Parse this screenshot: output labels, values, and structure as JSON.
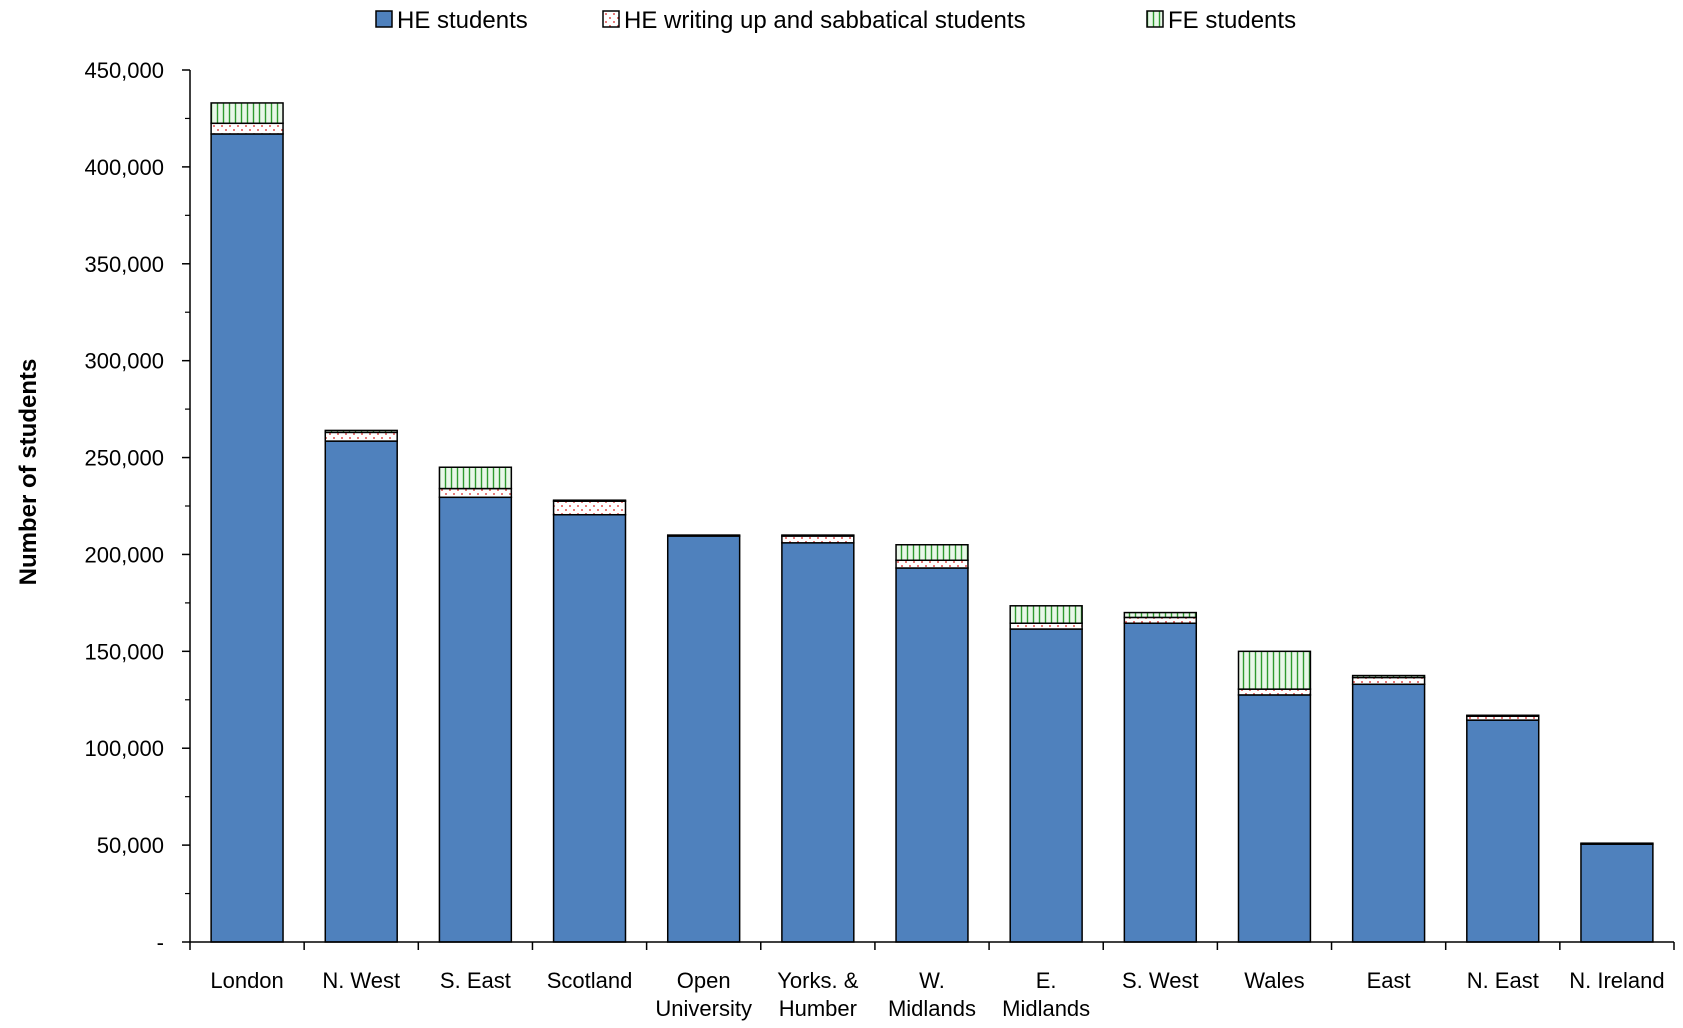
{
  "chart_data": {
    "type": "bar",
    "stacked": true,
    "title": "",
    "xlabel": "",
    "ylabel": "Number of students",
    "ylim": [
      0,
      450000
    ],
    "yticks": [
      0,
      50000,
      100000,
      150000,
      200000,
      250000,
      300000,
      350000,
      400000,
      450000
    ],
    "ytick_labels": [
      "-",
      "50,000",
      "100,000",
      "150,000",
      "200,000",
      "250,000",
      "300,000",
      "350,000",
      "400,000",
      "450,000"
    ],
    "grid": false,
    "legend_position": "top",
    "categories": [
      [
        "London"
      ],
      [
        "N. West"
      ],
      [
        "S. East"
      ],
      [
        "Scotland"
      ],
      [
        "Open",
        "University"
      ],
      [
        "Yorks. &",
        "Humber"
      ],
      [
        "W.",
        "Midlands"
      ],
      [
        "E.",
        "Midlands"
      ],
      [
        "S. West"
      ],
      [
        "Wales"
      ],
      [
        "East"
      ],
      [
        "N. East"
      ],
      [
        "N. Ireland"
      ]
    ],
    "series": [
      {
        "name": "HE students",
        "color": "#4f81bd",
        "pattern": "solid",
        "values": [
          417000,
          258500,
          229500,
          220500,
          209500,
          206000,
          193000,
          161500,
          164500,
          127500,
          133000,
          114500,
          50500
        ]
      },
      {
        "name": "HE writing up and sabbatical students",
        "color": "#ffffff",
        "pattern": "dots",
        "values": [
          5500,
          4500,
          4500,
          7000,
          500,
          3500,
          4000,
          3000,
          3000,
          3000,
          3500,
          2000,
          500
        ]
      },
      {
        "name": "FE students",
        "color": "#e6f5e6",
        "pattern": "vertical-lines",
        "values": [
          10500,
          1000,
          11000,
          500,
          0,
          500,
          8000,
          9000,
          2500,
          19500,
          1000,
          500,
          0
        ]
      }
    ]
  }
}
